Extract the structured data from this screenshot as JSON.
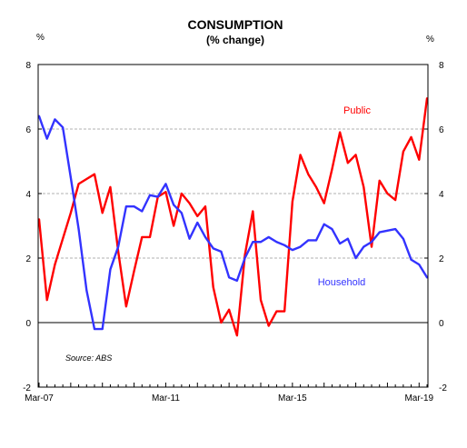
{
  "chart_data": {
    "type": "line",
    "title": "CONSUMPTION",
    "subtitle": "(% change)",
    "y_unit_left": "%",
    "y_unit_right": "%",
    "source": "Source: ABS",
    "ylim": [
      -2,
      8
    ],
    "yticks": [
      -2,
      0,
      2,
      4,
      6,
      8
    ],
    "grid": true,
    "x_tick_labels": [
      "Mar-07",
      "Mar-11",
      "Mar-15",
      "Mar-19"
    ],
    "x_tick_index": [
      0,
      16,
      32,
      48
    ],
    "x": [
      "Mar-07",
      "Jun-07",
      "Sep-07",
      "Dec-07",
      "Mar-08",
      "Jun-08",
      "Sep-08",
      "Dec-08",
      "Mar-09",
      "Jun-09",
      "Sep-09",
      "Dec-09",
      "Mar-10",
      "Jun-10",
      "Sep-10",
      "Dec-10",
      "Mar-11",
      "Jun-11",
      "Sep-11",
      "Dec-11",
      "Mar-12",
      "Jun-12",
      "Sep-12",
      "Dec-12",
      "Mar-13",
      "Jun-13",
      "Sep-13",
      "Dec-13",
      "Mar-14",
      "Jun-14",
      "Sep-14",
      "Dec-14",
      "Mar-15",
      "Jun-15",
      "Sep-15",
      "Dec-15",
      "Mar-16",
      "Jun-16",
      "Sep-16",
      "Dec-16",
      "Mar-17",
      "Jun-17",
      "Sep-17",
      "Dec-17",
      "Mar-18",
      "Jun-18",
      "Sep-18",
      "Dec-18",
      "Mar-19",
      "Jun-19"
    ],
    "series": [
      {
        "name": "Public",
        "color": "#ff0000",
        "values": [
          3.2,
          0.7,
          1.8,
          2.6,
          3.4,
          4.3,
          4.45,
          4.6,
          3.4,
          4.2,
          2.2,
          0.5,
          1.6,
          2.65,
          2.65,
          3.9,
          4.05,
          3.0,
          4.0,
          3.7,
          3.3,
          3.6,
          1.1,
          0.0,
          0.4,
          -0.4,
          2.1,
          3.45,
          0.7,
          -0.1,
          0.35,
          0.35,
          3.75,
          5.2,
          4.6,
          4.2,
          3.7,
          4.75,
          5.9,
          4.95,
          5.2,
          4.2,
          2.35,
          4.4,
          4.0,
          3.8,
          5.3,
          5.75,
          5.05,
          6.95
        ]
      },
      {
        "name": "Household",
        "color": "#3333ff",
        "values": [
          6.4,
          5.7,
          6.3,
          6.05,
          4.5,
          2.9,
          1.0,
          -0.2,
          -0.2,
          1.65,
          2.35,
          3.6,
          3.6,
          3.45,
          3.95,
          3.9,
          4.3,
          3.65,
          3.4,
          2.6,
          3.1,
          2.65,
          2.3,
          2.2,
          1.4,
          1.3,
          2.0,
          2.5,
          2.5,
          2.65,
          2.5,
          2.4,
          2.25,
          2.35,
          2.55,
          2.55,
          3.05,
          2.9,
          2.45,
          2.6,
          2.0,
          2.35,
          2.5,
          2.8,
          2.85,
          2.9,
          2.6,
          1.95,
          1.8,
          1.4
        ]
      }
    ]
  }
}
